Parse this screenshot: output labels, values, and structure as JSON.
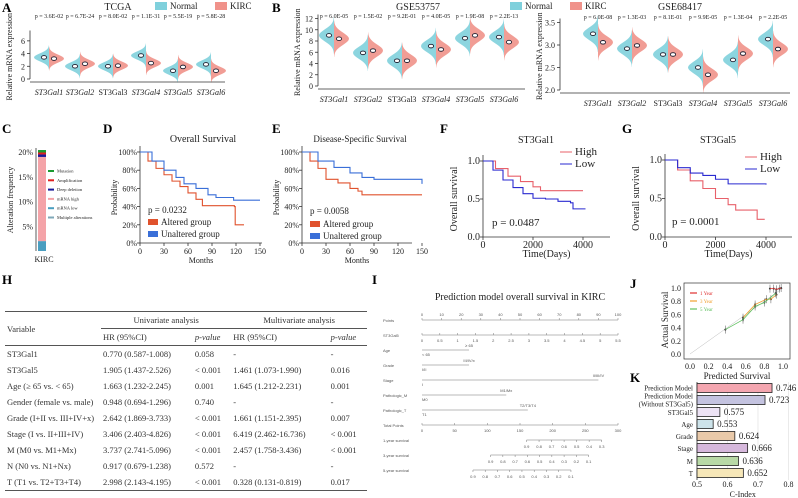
{
  "panels": {
    "A": "A",
    "B": "B",
    "C": "C",
    "D": "D",
    "E": "E",
    "F": "F",
    "G": "G",
    "H": "H",
    "I": "I",
    "J": "J",
    "K": "K"
  },
  "colors": {
    "normal": "#7fd0dc",
    "kirc": "#f0928a",
    "altered": "#e0522d",
    "unaltered": "#3a6fd8",
    "high": "#e8606a",
    "low": "#2a2ad0"
  },
  "chart_data": [
    {
      "id": "A",
      "type": "violin",
      "title": "TCGA",
      "ylabel": "Relative mRNA expression",
      "ylim": [
        0,
        7
      ],
      "yticks": [
        0,
        2,
        4,
        6
      ],
      "legend": [
        "Normal",
        "KIRC"
      ],
      "categories": [
        "ST3Gal1",
        "ST3Gal2",
        "ST3Gal3",
        "ST3Gal4",
        "ST3Gal5",
        "ST3Gal6"
      ],
      "pvalues": [
        "p = 3.6E-02",
        "p = 6.7E-24",
        "p = 8.0E-02",
        "p = 1.1E-31",
        "p = 5.5E-19",
        "p = 5.8E-28"
      ],
      "series": [
        {
          "name": "Normal",
          "medians": [
            3.4,
            2.0,
            2.0,
            3.7,
            1.3,
            2.3
          ]
        },
        {
          "name": "KIRC",
          "medians": [
            3.2,
            2.4,
            2.1,
            2.5,
            1.9,
            1.3
          ]
        }
      ]
    },
    {
      "id": "B1",
      "type": "violin",
      "title": "GSE53757",
      "ylabel": "Relative mRNA expression",
      "ylim": [
        0,
        12
      ],
      "yticks": [
        0,
        2,
        4,
        6,
        8,
        10,
        12
      ],
      "categories": [
        "ST3Gal1",
        "ST3Gal2",
        "ST3Gal3",
        "ST3Gal4",
        "ST3Gal5",
        "ST3Gal6"
      ],
      "pvalues": [
        "p = 6.0E-05",
        "p = 1.5E-02",
        "p = 9.2E-01",
        "p = 4.0E-05",
        "p = 1.9E-08",
        "p = 2.2E-13"
      ],
      "series": [
        {
          "name": "Normal",
          "medians": [
            9.0,
            5.9,
            4.5,
            7.1,
            8.5,
            8.7
          ]
        },
        {
          "name": "KIRC",
          "medians": [
            8.4,
            6.3,
            4.5,
            6.5,
            9.0,
            7.8
          ]
        }
      ]
    },
    {
      "id": "B2",
      "type": "violin",
      "title": "GSE68417",
      "ylabel": "Relative mRNA expression",
      "ylim": [
        2.0,
        3.5
      ],
      "yticks": [
        2.0,
        2.5,
        3.0,
        3.5
      ],
      "legend": [
        "Normal",
        "KIRC"
      ],
      "categories": [
        "ST3Gal1",
        "ST3Gal2",
        "ST3Gal3",
        "ST3Gal4",
        "ST3Gal5",
        "ST3Gal6"
      ],
      "pvalues": [
        "p = 6.0E-08",
        "p = 1.3E-03",
        "p = 8.1E-01",
        "p = 9.9E-05",
        "p = 1.3E-04",
        "p = 2.2E-05"
      ],
      "series": [
        {
          "name": "Normal",
          "medians": [
            3.25,
            2.92,
            2.79,
            2.5,
            2.67,
            3.13
          ]
        },
        {
          "name": "KIRC",
          "medians": [
            3.06,
            2.99,
            2.79,
            2.34,
            2.81,
            2.91
          ]
        }
      ]
    },
    {
      "id": "C",
      "type": "bar",
      "ylabel": "Alteration frequency",
      "categories": [
        "KIRC"
      ],
      "yticks": [
        "5%",
        "10%",
        "15%",
        "20%"
      ],
      "ylim": [
        0,
        21
      ],
      "series": [
        {
          "name": "mRNA low",
          "value": 2.0,
          "color": "#4a9ec0"
        },
        {
          "name": "mRNA high",
          "value": 17.0,
          "color": "#f4a3a8"
        },
        {
          "name": "Deep deletion",
          "value": 0.5,
          "color": "#1a1a9a"
        },
        {
          "name": "Amplification",
          "value": 0.4,
          "color": "#e02020"
        },
        {
          "name": "Mutation",
          "value": 0.5,
          "color": "#1a9a30"
        },
        {
          "name": "Multiple alterations",
          "value": 0,
          "color": "#7fa8b8"
        }
      ],
      "legend_order": [
        "Mutation",
        "Amplification",
        "Deep deletion",
        "mRNA high",
        "mRNA low",
        "Multiple alterations"
      ]
    },
    {
      "id": "D",
      "type": "line",
      "title": "Overall Survival",
      "xlabel": "Months",
      "ylabel": "Probability",
      "xticks": [
        0,
        30,
        60,
        90,
        120,
        150
      ],
      "yticks": [
        "0%",
        "20%",
        "40%",
        "60%",
        "80%",
        "100%"
      ],
      "pvalue": "p = 0.0232",
      "series": [
        {
          "name": "Altered group",
          "points": [
            [
              0,
              1
            ],
            [
              10,
              0.9
            ],
            [
              20,
              0.82
            ],
            [
              30,
              0.75
            ],
            [
              40,
              0.68
            ],
            [
              50,
              0.62
            ],
            [
              60,
              0.55
            ],
            [
              70,
              0.48
            ],
            [
              78,
              0.41
            ],
            [
              100,
              0.41
            ],
            [
              118,
              0.4
            ],
            [
              119,
              0.2
            ],
            [
              130,
              0.2
            ]
          ]
        },
        {
          "name": "Unaltered group",
          "points": [
            [
              0,
              1
            ],
            [
              15,
              0.9
            ],
            [
              30,
              0.8
            ],
            [
              45,
              0.72
            ],
            [
              55,
              0.65
            ],
            [
              70,
              0.6
            ],
            [
              85,
              0.53
            ],
            [
              95,
              0.5
            ],
            [
              115,
              0.5
            ],
            [
              117,
              0.47
            ],
            [
              150,
              0.47
            ]
          ]
        }
      ]
    },
    {
      "id": "E",
      "type": "line",
      "title": "Disease-Specific Survival",
      "xlabel": "Months",
      "ylabel": "Probability",
      "xticks": [
        0,
        30,
        60,
        90,
        120,
        150
      ],
      "yticks": [
        "0%",
        "20%",
        "40%",
        "60%",
        "80%",
        "100%"
      ],
      "pvalue": "p = 0.0058",
      "series": [
        {
          "name": "Altered group",
          "points": [
            [
              0,
              1
            ],
            [
              10,
              0.9
            ],
            [
              20,
              0.82
            ],
            [
              30,
              0.7
            ],
            [
              45,
              0.66
            ],
            [
              60,
              0.6
            ],
            [
              70,
              0.57
            ],
            [
              75,
              0.53
            ],
            [
              150,
              0.53
            ]
          ]
        },
        {
          "name": "Unaltered group",
          "points": [
            [
              0,
              1
            ],
            [
              20,
              0.9
            ],
            [
              40,
              0.83
            ],
            [
              60,
              0.77
            ],
            [
              75,
              0.72
            ],
            [
              90,
              0.7
            ],
            [
              145,
              0.7
            ],
            [
              150,
              0.65
            ]
          ]
        }
      ]
    },
    {
      "id": "F",
      "type": "line",
      "title": "ST3Gal1",
      "xlabel": "Time(Days)",
      "ylabel": "Overall  survival",
      "xticks": [
        0,
        2000,
        4000
      ],
      "yticks": [
        "0.0",
        "0.5",
        "1.0"
      ],
      "pvalue": "p = 0.0487",
      "series": [
        {
          "name": "High",
          "points": [
            [
              0,
              1
            ],
            [
              500,
              0.9
            ],
            [
              1000,
              0.8
            ],
            [
              1500,
              0.73
            ],
            [
              2000,
              0.66
            ],
            [
              2300,
              0.61
            ],
            [
              4000,
              0.61
            ]
          ]
        },
        {
          "name": "Low",
          "points": [
            [
              0,
              1
            ],
            [
              400,
              0.88
            ],
            [
              800,
              0.75
            ],
            [
              1200,
              0.65
            ],
            [
              1600,
              0.57
            ],
            [
              2000,
              0.51
            ],
            [
              2500,
              0.5
            ],
            [
              3000,
              0.47
            ],
            [
              3500,
              0.45
            ],
            [
              3600,
              0.37
            ],
            [
              4100,
              0.37
            ]
          ]
        }
      ]
    },
    {
      "id": "G",
      "type": "line",
      "title": "ST3Gal5",
      "xlabel": "Time(Days)",
      "ylabel": "Overall  survival",
      "xticks": [
        0,
        2000,
        4000
      ],
      "yticks": [
        "0.0",
        "0.5",
        "1.0"
      ],
      "pvalue": "p = 0.0001",
      "series": [
        {
          "name": "High",
          "points": [
            [
              0,
              1
            ],
            [
              500,
              0.87
            ],
            [
              1000,
              0.73
            ],
            [
              1500,
              0.63
            ],
            [
              2000,
              0.5
            ],
            [
              2500,
              0.42
            ],
            [
              2800,
              0.35
            ],
            [
              3600,
              0.35
            ],
            [
              3650,
              0.23
            ],
            [
              3950,
              0.23
            ]
          ]
        },
        {
          "name": "Low",
          "points": [
            [
              0,
              1
            ],
            [
              500,
              0.9
            ],
            [
              1000,
              0.83
            ],
            [
              1500,
              0.8
            ],
            [
              2000,
              0.75
            ],
            [
              2500,
              0.69
            ],
            [
              4000,
              0.68
            ]
          ]
        }
      ]
    },
    {
      "id": "I",
      "type": "nomogram",
      "title": "Prediction model overall survival in KIRC",
      "rows": [
        {
          "label": "Points",
          "ticks": [
            "0",
            "10",
            "20",
            "30",
            "40",
            "50",
            "60",
            "70",
            "80",
            "90",
            "100"
          ]
        },
        {
          "label": "ST3Gal5",
          "ticks": [
            "0",
            "0.5",
            "1",
            "1.5",
            "2",
            "2.5",
            "3",
            "3.5",
            "4",
            "4.5",
            "5",
            "5.5"
          ]
        },
        {
          "label": "Age",
          "low": "< 65",
          "high": "≥ 65",
          "points": 24
        },
        {
          "label": "Grade",
          "low": "I/II",
          "high": "III/IV/x",
          "points": 24
        },
        {
          "label": "Stage",
          "low": "I",
          "high": "II/III/IV",
          "points": 90
        },
        {
          "label": "Pathologic_M",
          "low": "M0",
          "high": "M1/Mx",
          "points": 43
        },
        {
          "label": "Pathologic_T",
          "low": "T1",
          "high": "T2/T3/T4",
          "points": 54
        },
        {
          "label": "Total Points",
          "ticks": [
            "0",
            "50",
            "100",
            "150",
            "200",
            "250",
            "300"
          ]
        },
        {
          "label": "1-year survival",
          "ticks": [
            "0.9",
            "0.8",
            "0.7",
            "0.6",
            "0.5",
            "0.4",
            "0.3"
          ],
          "range": [
            160,
            275
          ]
        },
        {
          "label": "3-year survival",
          "ticks": [
            "0.9",
            "0.8",
            "0.7",
            "0.6",
            "0.5",
            "0.4",
            "0.3",
            "0.2",
            "0.1"
          ],
          "range": [
            105,
            255
          ]
        },
        {
          "label": "5-year survival",
          "ticks": [
            "0.9",
            "0.8",
            "0.7",
            "0.6",
            "0.5",
            "0.4",
            "0.3",
            "0.2",
            "0.1"
          ],
          "range": [
            78,
            228
          ]
        }
      ]
    },
    {
      "id": "J",
      "type": "scatter",
      "xlabel": "Predicted Survival",
      "ylabel": "Actual Survival",
      "xticks": [
        "0.0",
        "0.2",
        "0.4",
        "0.6",
        "0.8",
        "1.0"
      ],
      "yticks": [
        "0.0",
        "0.2",
        "0.4",
        "0.6",
        "0.8",
        "1.0"
      ],
      "xlim": [
        0,
        1
      ],
      "ylim": [
        0,
        1
      ],
      "series": [
        {
          "name": "1 Year",
          "color": "#e03030",
          "points": [
            [
              0.86,
              0.99
            ],
            [
              0.9,
              0.99
            ],
            [
              0.93,
              0.98
            ],
            [
              0.96,
              0.99
            ],
            [
              0.98,
              1.0
            ]
          ]
        },
        {
          "name": "3 Year",
          "color": "#f0a030",
          "points": [
            [
              0.57,
              0.55
            ],
            [
              0.7,
              0.75
            ],
            [
              0.82,
              0.83
            ],
            [
              0.87,
              0.83
            ],
            [
              0.93,
              0.9
            ]
          ]
        },
        {
          "name": "5 Year",
          "color": "#60c060",
          "points": [
            [
              0.38,
              0.37
            ],
            [
              0.57,
              0.52
            ],
            [
              0.7,
              0.72
            ],
            [
              0.8,
              0.78
            ],
            [
              0.92,
              0.92
            ]
          ]
        }
      ]
    },
    {
      "id": "K",
      "type": "bar",
      "orientation": "horizontal",
      "xlabel": "C-Index",
      "xlim": [
        0.5,
        0.8
      ],
      "xticks": [
        "0.5",
        "0.6",
        "0.7",
        "0.8"
      ],
      "categories": [
        "Prediction Model",
        "Prediction Model\n(Without ST3Gal5)",
        "ST3Gal5",
        "Age",
        "Grade",
        "Stage",
        "M",
        "T"
      ],
      "category_lines": [
        [
          "Prediction Model"
        ],
        [
          "Prediction Model",
          "(Without ST3Gal5)"
        ],
        [
          "ST3Gal5"
        ],
        [
          "Age"
        ],
        [
          "Grade"
        ],
        [
          "Stage"
        ],
        [
          "M"
        ],
        [
          "T"
        ]
      ],
      "values": [
        0.746,
        0.723,
        0.575,
        0.553,
        0.624,
        0.666,
        0.636,
        0.652
      ],
      "labels": [
        "0.746",
        "0.723",
        "0.575",
        "0.553",
        "0.624",
        "0.666",
        "0.636",
        "0.652"
      ],
      "colors": [
        "#f4a6b0",
        "#c4c3e0",
        "#ede3f5",
        "#cde3ea",
        "#e9c9a9",
        "#d6b8dc",
        "#b8d9a6",
        "#f6e7b8"
      ]
    }
  ],
  "table": {
    "headers": {
      "variable": "Variable",
      "univariate": "Univariate analysis",
      "multivariate": "Multivariate analysis",
      "hr": "HR (95%CI)",
      "p": "p-value"
    },
    "rows": [
      [
        "ST3Gal1",
        "0.770 (0.587-1.008)",
        "0.058",
        "-",
        "-"
      ],
      [
        "ST3Gal5",
        "1.905 (1.437-2.526)",
        "< 0.001",
        "1.461 (1.073-1.990)",
        "0.016"
      ],
      [
        "Age (≥ 65 vs. < 65)",
        "1.663 (1.232-2.245)",
        "0.001",
        "1.645 (1.212-2.231)",
        "0.001"
      ],
      [
        "Gender (female vs. male)",
        "0.948 (0.694-1.296)",
        "0.740",
        "-",
        "-"
      ],
      [
        "Grade (I+II vs. III+IV+x)",
        "2.642 (1.869-3.733)",
        "< 0.001",
        "1.661 (1.151-2.395)",
        "0.007"
      ],
      [
        "Stage (I vs. II+III+IV)",
        "3.406 (2.403-4.826)",
        "< 0.001",
        "6.419 (2.462-16.736)",
        "< 0.001"
      ],
      [
        "M (M0 vs. M1+Mx)",
        "3.737 (2.741-5.096)",
        "< 0.001",
        "2.457 (1.758-3.436)",
        "< 0.001"
      ],
      [
        "N (N0 vs. N1+Nx)",
        "0.917 (0.679-1.238)",
        "0.572",
        "-",
        "-"
      ],
      [
        "T (T1 vs. T2+T3+T4)",
        "2.998 (2.143-4.195)",
        "< 0.001",
        "0.328 (0.131-0.819)",
        "0.017"
      ]
    ]
  }
}
